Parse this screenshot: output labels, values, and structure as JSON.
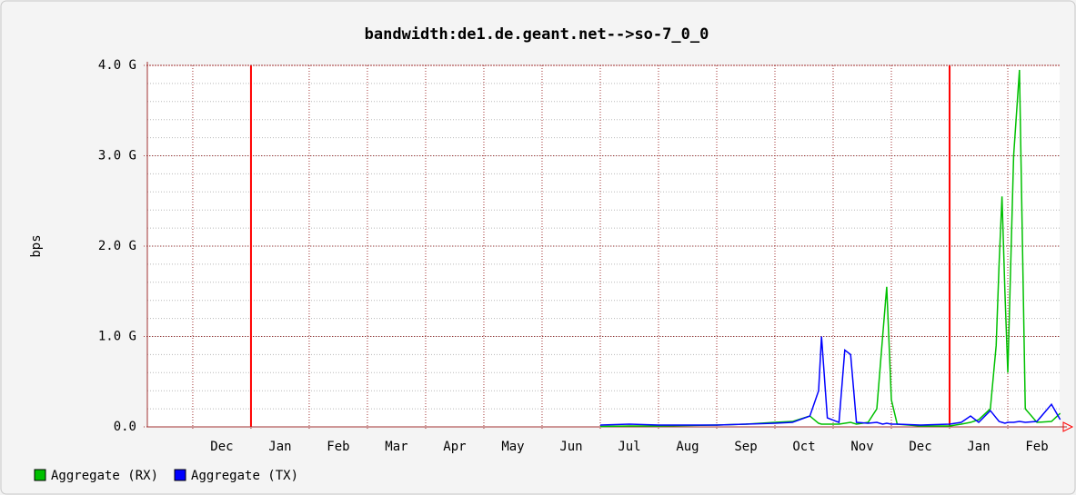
{
  "chart_data": {
    "type": "line",
    "title": "bandwidth:de1.de.geant.net-->so-7_0_0",
    "y_label": "bps",
    "xlim": [
      -0.78,
      14.89
    ],
    "xticks": [
      {
        "value": 0,
        "label": "Dec"
      },
      {
        "value": 1,
        "label": "Jan"
      },
      {
        "value": 2,
        "label": "Feb"
      },
      {
        "value": 3,
        "label": "Mar"
      },
      {
        "value": 4,
        "label": "Apr"
      },
      {
        "value": 5,
        "label": "May"
      },
      {
        "value": 6,
        "label": "Jun"
      },
      {
        "value": 7,
        "label": "Jul"
      },
      {
        "value": 8,
        "label": "Aug"
      },
      {
        "value": 9,
        "label": "Sep"
      },
      {
        "value": 10,
        "label": "Oct"
      },
      {
        "value": 11,
        "label": "Nov"
      },
      {
        "value": 12,
        "label": "Dec"
      },
      {
        "value": 13,
        "label": "Jan"
      },
      {
        "value": 14,
        "label": "Feb"
      }
    ],
    "year_lines": [
      1,
      13
    ],
    "ylim": [
      0,
      4000000000
    ],
    "yticks": [
      {
        "value": 0,
        "label": "0.0"
      },
      {
        "value": 1000000000,
        "label": "1.0 G"
      },
      {
        "value": 2000000000,
        "label": "2.0 G"
      },
      {
        "value": 3000000000,
        "label": "3.0 G"
      },
      {
        "value": 4000000000,
        "label": "4.0 G"
      }
    ],
    "y_minor_step": 200000000,
    "grid": true,
    "x": [
      7.0,
      7.5,
      8.0,
      8.5,
      9.0,
      9.5,
      10.0,
      10.3,
      10.6,
      10.75,
      10.8,
      10.9,
      11.1,
      11.2,
      11.3,
      11.4,
      11.6,
      11.75,
      11.85,
      11.92,
      12.0,
      12.1,
      12.5,
      13.0,
      13.2,
      13.36,
      13.5,
      13.7,
      13.8,
      13.85,
      13.9,
      13.95,
      14.0,
      14.1,
      14.2,
      14.3,
      14.5,
      14.75,
      14.9
    ],
    "series": [
      {
        "name": "Aggregate (RX)",
        "color": "#00c000",
        "values": [
          5000000,
          10000000,
          10000000,
          15000000,
          20000000,
          30000000,
          50000000,
          60000000,
          120000000,
          40000000,
          30000000,
          30000000,
          30000000,
          40000000,
          50000000,
          30000000,
          50000000,
          200000000,
          1000000000,
          1550000000,
          300000000,
          30000000,
          10000000,
          10000000,
          30000000,
          50000000,
          80000000,
          200000000,
          900000000,
          1800000000,
          2550000000,
          1500000000,
          600000000,
          3000000000,
          3950000000,
          200000000,
          50000000,
          60000000,
          150000000
        ]
      },
      {
        "name": "Aggregate (TX)",
        "color": "#0000ff",
        "values": [
          20000000,
          30000000,
          20000000,
          20000000,
          20000000,
          30000000,
          40000000,
          50000000,
          120000000,
          400000000,
          1000000000,
          100000000,
          50000000,
          850000000,
          800000000,
          50000000,
          40000000,
          50000000,
          30000000,
          40000000,
          30000000,
          30000000,
          20000000,
          30000000,
          50000000,
          120000000,
          50000000,
          180000000,
          100000000,
          60000000,
          50000000,
          40000000,
          50000000,
          50000000,
          60000000,
          50000000,
          60000000,
          250000000,
          80000000
        ]
      }
    ]
  }
}
